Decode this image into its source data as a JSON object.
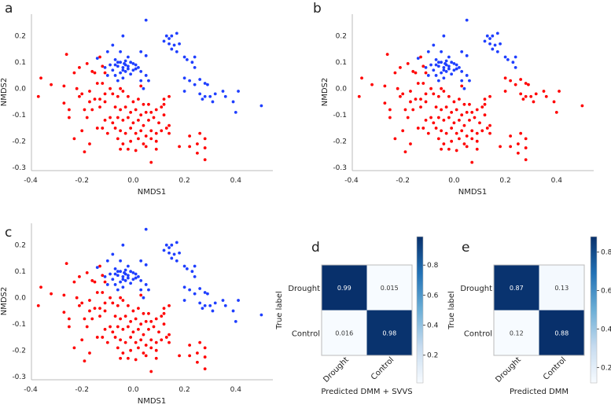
{
  "panel_labels": [
    "a",
    "b",
    "c",
    "d",
    "e"
  ],
  "chart_data": [
    {
      "type": "scatter",
      "panel": "a",
      "xlabel": "NMDS1",
      "ylabel": "NMDS2",
      "xlim": [
        -0.4,
        0.5
      ],
      "ylim": [
        -0.3,
        0.26
      ],
      "xticks": [
        -0.4,
        -0.2,
        0.0,
        0.2,
        0.4
      ],
      "yticks": [
        0.2,
        0.1,
        0.0,
        -0.1,
        -0.2,
        -0.3
      ],
      "tail_color": "#1f3fff",
      "colors": {
        "blue": "#1f3fff",
        "red": "#ff0000"
      }
    },
    {
      "type": "scatter",
      "panel": "b",
      "xlabel": "NMDS1",
      "ylabel": "NMDS2",
      "xlim": [
        -0.4,
        0.5
      ],
      "ylim": [
        -0.3,
        0.26
      ],
      "xticks": [
        -0.4,
        -0.2,
        0.0,
        0.2,
        0.4
      ],
      "yticks": [
        0.2,
        0.1,
        0.0,
        -0.1,
        -0.2,
        -0.3
      ],
      "tail_color": "#ff0000",
      "colors": {
        "blue": "#1f3fff",
        "red": "#ff0000"
      }
    },
    {
      "type": "scatter",
      "panel": "c",
      "xlabel": "NMDS1",
      "ylabel": "NMDS2",
      "xlim": [
        -0.4,
        0.5
      ],
      "ylim": [
        -0.3,
        0.26
      ],
      "xticks": [
        -0.4,
        -0.2,
        0.0,
        0.2,
        0.4
      ],
      "yticks": [
        0.2,
        0.1,
        0.0,
        -0.1,
        -0.2,
        -0.3
      ],
      "tail_color": "#1f3fff",
      "colors": {
        "blue": "#1f3fff",
        "red": "#ff0000"
      }
    },
    {
      "type": "heatmap",
      "panel": "d",
      "row_labels": [
        "Drought",
        "Control"
      ],
      "col_labels": [
        "Drought",
        "Control"
      ],
      "values": [
        [
          "0.99",
          "0.015"
        ],
        [
          "0.016",
          "0.98"
        ]
      ],
      "xlabel": "Predicted DMM + SVVS",
      "ylabel": "True label",
      "colorbar_ticks": [
        "0.8",
        "0.6",
        "0.4",
        "0.2"
      ],
      "colorbar_range": [
        0.015,
        0.99
      ]
    },
    {
      "type": "heatmap",
      "panel": "e",
      "row_labels": [
        "Drought",
        "Control"
      ],
      "col_labels": [
        "Drought",
        "Control"
      ],
      "values": [
        [
          "0.87",
          "0.13"
        ],
        [
          "0.12",
          "0.88"
        ]
      ],
      "xlabel": "Predicted DMM",
      "ylabel": "True label",
      "colorbar_ticks": [
        "0.8",
        "0.6",
        "0.4",
        "0.2"
      ],
      "colorbar_range": [
        0.12,
        0.88
      ]
    }
  ],
  "points": {
    "blue_main": [
      [
        0.05,
        0.26
      ],
      [
        -0.04,
        0.2
      ],
      [
        -0.08,
        0.165
      ],
      [
        -0.14,
        0.115
      ],
      [
        -0.1,
        0.14
      ],
      [
        -0.05,
        0.14
      ],
      [
        -0.02,
        0.12
      ],
      [
        0.03,
        0.14
      ],
      [
        0.05,
        0.125
      ],
      [
        -0.07,
        0.11
      ],
      [
        -0.05,
        0.1
      ],
      [
        -0.03,
        0.105
      ],
      [
        -0.01,
        0.1
      ],
      [
        0.01,
        0.09
      ],
      [
        -0.09,
        0.09
      ],
      [
        -0.06,
        0.085
      ],
      [
        -0.04,
        0.08
      ],
      [
        -0.02,
        0.075
      ],
      [
        0.0,
        0.07
      ],
      [
        0.02,
        0.08
      ],
      [
        -0.08,
        0.07
      ],
      [
        -0.05,
        0.06
      ],
      [
        -0.03,
        0.065
      ],
      [
        -0.01,
        0.055
      ],
      [
        0.03,
        0.065
      ],
      [
        -0.07,
        0.05
      ],
      [
        -0.04,
        0.04
      ],
      [
        -0.06,
        0.03
      ],
      [
        0.05,
        0.05
      ],
      [
        0.03,
        0.03
      ],
      [
        0.04,
        0.0
      ],
      [
        0.06,
        0.03
      ],
      [
        -0.1,
        0.05
      ],
      [
        -0.11,
        0.08
      ],
      [
        0.0,
        0.095
      ],
      [
        -0.03,
        0.09
      ],
      [
        -0.06,
        0.1
      ],
      [
        -0.02,
        0.085
      ],
      [
        -0.04,
        0.07
      ],
      [
        0.01,
        0.075
      ],
      [
        -0.07,
        0.09
      ],
      [
        -0.035,
        0.095
      ],
      [
        0.12,
        0.18
      ],
      [
        0.13,
        0.2
      ],
      [
        0.14,
        0.19
      ],
      [
        0.15,
        0.2
      ],
      [
        0.17,
        0.21
      ],
      [
        0.14,
        0.17
      ],
      [
        0.16,
        0.165
      ],
      [
        0.18,
        0.17
      ],
      [
        0.15,
        0.15
      ],
      [
        0.17,
        0.14
      ],
      [
        0.2,
        0.12
      ],
      [
        0.21,
        0.11
      ],
      [
        0.23,
        0.1
      ],
      [
        0.24,
        0.12
      ],
      [
        0.24,
        0.08
      ]
    ],
    "tail": [
      [
        0.2,
        0.04
      ],
      [
        0.22,
        0.03
      ],
      [
        0.26,
        0.035
      ],
      [
        0.28,
        0.02
      ],
      [
        0.24,
        0.015
      ],
      [
        0.2,
        -0.01
      ],
      [
        0.26,
        -0.02
      ],
      [
        0.27,
        -0.04
      ],
      [
        0.29,
        0.015
      ],
      [
        0.3,
        -0.03
      ],
      [
        0.31,
        -0.05
      ],
      [
        0.32,
        -0.02
      ],
      [
        0.35,
        -0.01
      ],
      [
        0.36,
        -0.03
      ],
      [
        0.39,
        -0.05
      ],
      [
        0.4,
        -0.09
      ],
      [
        0.41,
        -0.01
      ],
      [
        0.5,
        -0.065
      ],
      [
        0.28,
        -0.03
      ]
    ],
    "red": [
      [
        -0.26,
        0.13
      ],
      [
        -0.36,
        0.04
      ],
      [
        -0.32,
        0.015
      ],
      [
        -0.27,
        0.01
      ],
      [
        -0.37,
        -0.03
      ],
      [
        -0.27,
        -0.055
      ],
      [
        -0.25,
        -0.08
      ],
      [
        -0.25,
        -0.11
      ],
      [
        -0.23,
        0.06
      ],
      [
        -0.21,
        0.08
      ],
      [
        -0.22,
        0.0
      ],
      [
        -0.2,
        -0.02
      ],
      [
        -0.21,
        -0.03
      ],
      [
        -0.18,
        0.095
      ],
      [
        -0.16,
        0.065
      ],
      [
        -0.15,
        0.06
      ],
      [
        -0.13,
        0.12
      ],
      [
        -0.12,
        0.085
      ],
      [
        -0.11,
        0.06
      ],
      [
        -0.14,
        0.02
      ],
      [
        -0.12,
        0.02
      ],
      [
        -0.17,
        -0.01
      ],
      [
        -0.15,
        -0.04
      ],
      [
        -0.13,
        -0.04
      ],
      [
        -0.11,
        -0.05
      ],
      [
        -0.17,
        -0.05
      ],
      [
        -0.19,
        -0.08
      ],
      [
        -0.16,
        -0.08
      ],
      [
        -0.13,
        -0.07
      ],
      [
        -0.18,
        -0.11
      ],
      [
        -0.2,
        -0.16
      ],
      [
        -0.23,
        -0.19
      ],
      [
        -0.19,
        -0.24
      ],
      [
        -0.17,
        -0.21
      ],
      [
        -0.14,
        -0.15
      ],
      [
        -0.12,
        -0.15
      ],
      [
        -0.11,
        -0.12
      ],
      [
        -0.09,
        -0.11
      ],
      [
        -0.1,
        -0.17
      ],
      [
        -0.08,
        -0.13
      ],
      [
        -0.08,
        -0.02
      ],
      [
        -0.06,
        -0.03
      ],
      [
        -0.05,
        0.0
      ],
      [
        -0.04,
        -0.01
      ],
      [
        -0.02,
        -0.03
      ],
      [
        0.0,
        -0.05
      ],
      [
        0.02,
        -0.04
      ],
      [
        0.03,
        0.01
      ],
      [
        0.04,
        -0.06
      ],
      [
        0.06,
        -0.06
      ],
      [
        -0.07,
        -0.07
      ],
      [
        -0.05,
        -0.08
      ],
      [
        -0.03,
        -0.07
      ],
      [
        -0.01,
        -0.09
      ],
      [
        0.01,
        -0.08
      ],
      [
        0.03,
        -0.1
      ],
      [
        0.05,
        -0.09
      ],
      [
        0.07,
        -0.09
      ],
      [
        0.09,
        -0.08
      ],
      [
        0.11,
        -0.07
      ],
      [
        -0.06,
        -0.11
      ],
      [
        -0.04,
        -0.12
      ],
      [
        -0.02,
        -0.11
      ],
      [
        0.0,
        -0.13
      ],
      [
        0.02,
        -0.12
      ],
      [
        0.04,
        -0.14
      ],
      [
        0.06,
        -0.12
      ],
      [
        0.08,
        -0.11
      ],
      [
        0.1,
        -0.13
      ],
      [
        0.12,
        -0.1
      ],
      [
        0.13,
        -0.15
      ],
      [
        -0.07,
        -0.15
      ],
      [
        -0.05,
        -0.16
      ],
      [
        -0.03,
        -0.17
      ],
      [
        -0.01,
        -0.15
      ],
      [
        0.01,
        -0.17
      ],
      [
        0.03,
        -0.16
      ],
      [
        0.05,
        -0.18
      ],
      [
        0.07,
        -0.16
      ],
      [
        0.09,
        -0.17
      ],
      [
        0.11,
        -0.16
      ],
      [
        -0.06,
        -0.19
      ],
      [
        -0.04,
        -0.21
      ],
      [
        -0.01,
        -0.2
      ],
      [
        0.02,
        -0.19
      ],
      [
        0.04,
        -0.21
      ],
      [
        0.07,
        -0.19
      ],
      [
        0.09,
        -0.2
      ],
      [
        -0.05,
        -0.23
      ],
      [
        -0.02,
        -0.23
      ],
      [
        0.01,
        -0.235
      ],
      [
        0.05,
        -0.22
      ],
      [
        0.09,
        -0.23
      ],
      [
        0.12,
        -0.04
      ],
      [
        0.14,
        -0.03
      ],
      [
        0.12,
        -0.06
      ],
      [
        0.14,
        -0.14
      ],
      [
        0.14,
        -0.17
      ],
      [
        0.18,
        -0.22
      ],
      [
        0.22,
        -0.18
      ],
      [
        0.22,
        -0.22
      ],
      [
        0.25,
        -0.21
      ],
      [
        0.25,
        -0.245
      ],
      [
        0.26,
        -0.17
      ],
      [
        0.28,
        -0.19
      ],
      [
        0.28,
        -0.225
      ],
      [
        0.28,
        -0.27
      ],
      [
        0.07,
        -0.28
      ],
      [
        -0.11,
        -0.02
      ],
      [
        -0.09,
        0.0
      ]
    ]
  }
}
